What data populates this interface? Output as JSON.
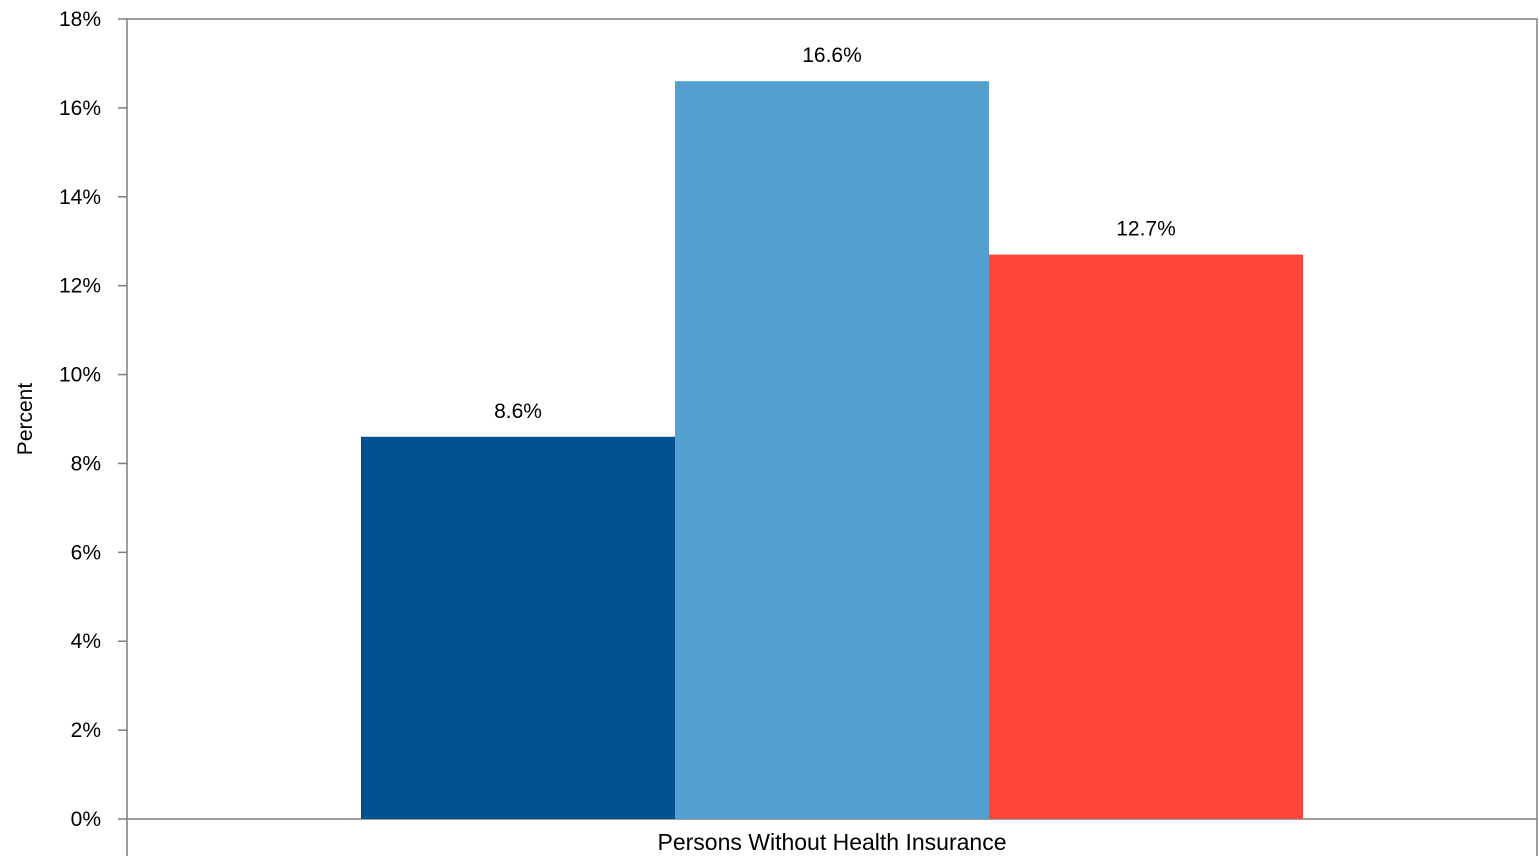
{
  "chart_data": {
    "type": "bar",
    "categories": [
      "Persons Without Health Insurance"
    ],
    "series": [
      {
        "values": [
          8.6
        ],
        "color": "#02528F",
        "label": "8.6%"
      },
      {
        "values": [
          16.6
        ],
        "color": "#539FD0",
        "label": "16.6%"
      },
      {
        "values": [
          12.7
        ],
        "color": "#FF453B",
        "label": "12.7%"
      }
    ],
    "title": "",
    "xlabel": "",
    "ylabel": "Percent",
    "ylim": [
      0,
      18
    ],
    "yticks": [
      0,
      2,
      4,
      6,
      8,
      10,
      12,
      14,
      16,
      18
    ],
    "ytick_labels": [
      "0%",
      "2%",
      "4%",
      "6%",
      "8%",
      "10%",
      "12%",
      "14%",
      "16%",
      "18%"
    ],
    "grid": false,
    "legend": "none"
  }
}
